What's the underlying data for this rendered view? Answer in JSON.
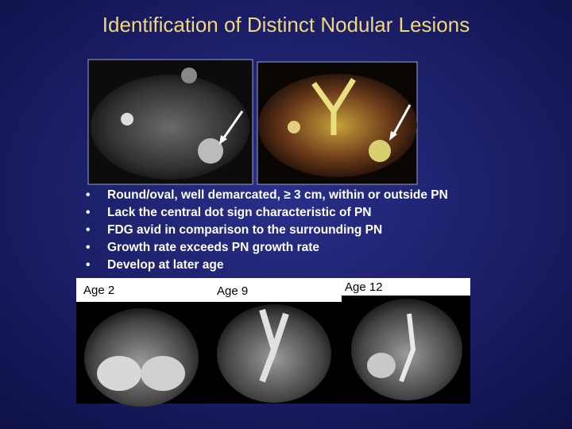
{
  "title": "Identification of Distinct Nodular Lesions",
  "bullets": [
    "Round/oval, well demarcated, ≥ 3 cm, within or outside PN",
    "Lack the central dot sign characteristic of PN",
    "FDG avid in comparison to the surrounding PN",
    "Growth rate exceeds PN growth rate",
    "Develop at later age"
  ],
  "images": [
    {
      "label": "Age 2"
    },
    {
      "label": "Age 9"
    },
    {
      "label": "Age 12"
    }
  ]
}
